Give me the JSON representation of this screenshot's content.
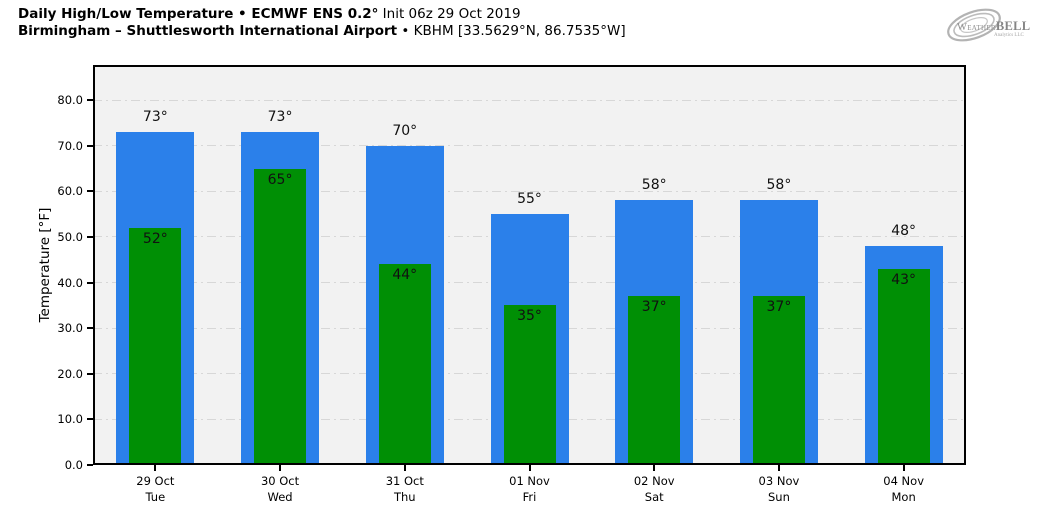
{
  "header": {
    "title_bold": "Daily High/Low Temperature • ECMWF ENS 0.2°",
    "title_regular": " Init 06z 29 Oct 2019",
    "subtitle_bold": "Birmingham – Shuttlesworth International Airport",
    "subtitle_regular": " • KBHM [33.5629°N, 86.7535°W]"
  },
  "logo": {
    "brand_prefix": "Weather",
    "brand_suffix": "BELL",
    "sub": "Analytics LLC"
  },
  "chart_data": {
    "type": "bar",
    "title": "Daily High/Low Temperature • ECMWF ENS 0.2° Init 06z 29 Oct 2019",
    "subtitle": "Birmingham – Shuttlesworth International Airport • KBHM [33.5629°N, 86.7535°W]",
    "ylabel": "Temperature [°F]",
    "ylim": [
      0,
      87.7
    ],
    "ytick_labels": [
      "0.0",
      "10.0",
      "20.0",
      "30.0",
      "40.0",
      "50.0",
      "60.0",
      "70.0",
      "80.0"
    ],
    "grid": "horizontal dash-dot, drawn behind bars",
    "legend": "none",
    "categories": [
      {
        "date": "29 Oct",
        "day": "Tue"
      },
      {
        "date": "30 Oct",
        "day": "Wed"
      },
      {
        "date": "31 Oct",
        "day": "Thu"
      },
      {
        "date": "01 Nov",
        "day": "Fri"
      },
      {
        "date": "02 Nov",
        "day": "Sat"
      },
      {
        "date": "03 Nov",
        "day": "Sun"
      },
      {
        "date": "04 Nov",
        "day": "Mon"
      }
    ],
    "series": [
      {
        "name": "Daily High",
        "color": "#2b80ea",
        "values": [
          73,
          73,
          70,
          55,
          58,
          58,
          48
        ]
      },
      {
        "name": "Daily Low",
        "color": "#008f05",
        "values": [
          52,
          65,
          44,
          35,
          37,
          37,
          43
        ]
      }
    ],
    "value_suffix": "°"
  },
  "colors": {
    "plot_background": "#f2f2f2",
    "gridline": "#d7d7d7",
    "spine": "#000000",
    "text": "#000000",
    "logo_gray": "#8f8f8f"
  }
}
